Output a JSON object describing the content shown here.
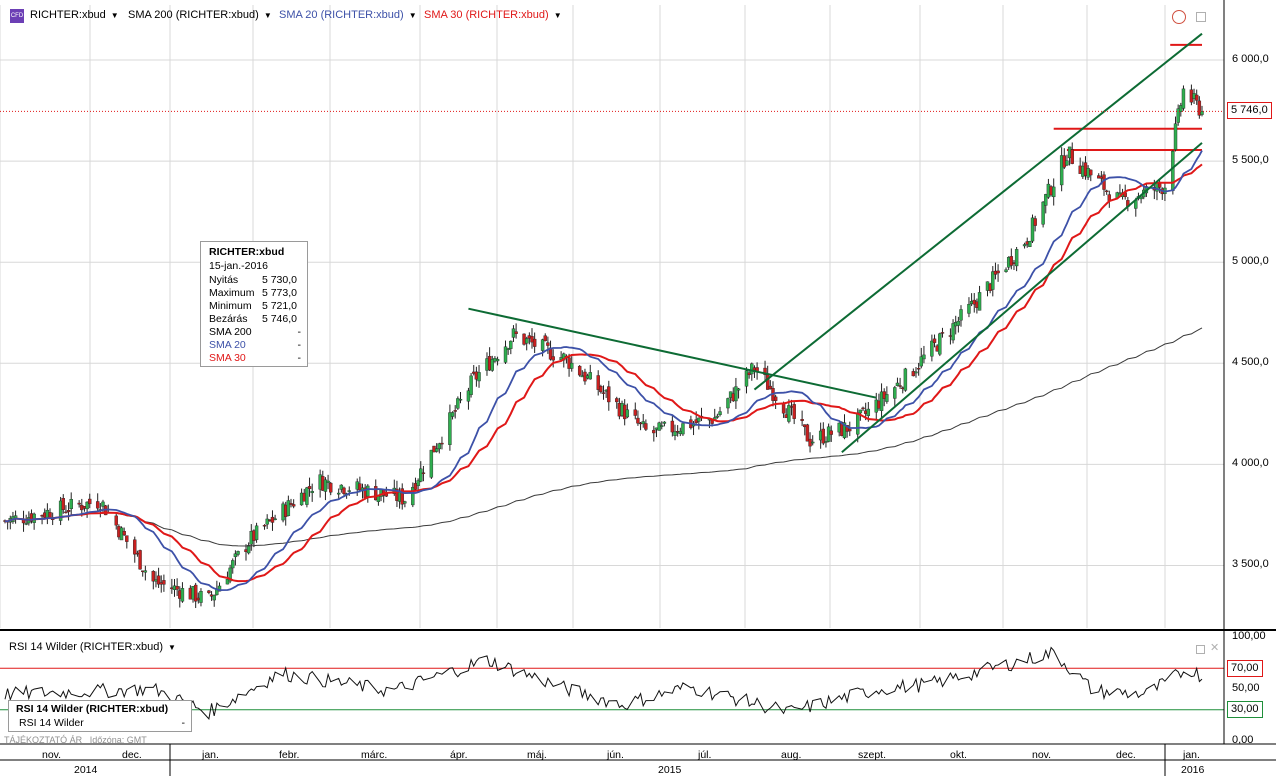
{
  "header": {
    "instrument": "RICHTER:xbud",
    "sma200_label": "SMA 200 (RICHTER:xbud)",
    "sma20_label": "SMA 20 (RICHTER:xbud)",
    "sma30_label": "SMA 30 (RICHTER:xbud)"
  },
  "colors": {
    "sma200": "#3a3a3a",
    "sma20": "#3d51a8",
    "sma30": "#e01818",
    "trend": "#0d6b34",
    "level": "#e01818",
    "rsi_upper": "#e01818",
    "rsi_lower": "#1f8f3a"
  },
  "info_box": {
    "title": "RICHTER:xbud",
    "date": "15-jan.-2016",
    "rows": [
      {
        "label": "Nyitás",
        "value": "5 730,0"
      },
      {
        "label": "Maximum",
        "value": "5 773,0"
      },
      {
        "label": "Minimum",
        "value": "5 721,0"
      },
      {
        "label": "Bezárás",
        "value": "5 746,0"
      },
      {
        "label": "SMA 200",
        "value": "-"
      },
      {
        "label": "SMA 20",
        "value": "-"
      },
      {
        "label": "SMA 30",
        "value": "-"
      }
    ]
  },
  "price_axis": {
    "labels": [
      "6 000,0",
      "5 500,0",
      "5 000,0",
      "4 500,0",
      "4 000,0",
      "3 500,0"
    ],
    "last_price": "5 746,0"
  },
  "rsi": {
    "title": "RSI 14 Wilder (RICHTER:xbud)",
    "box_title": "RSI 14 Wilder (RICHTER:xbud)",
    "box_row_label": "RSI 14 Wilder",
    "box_row_value": "-",
    "axis_labels": [
      "100,00",
      "50,00",
      "0,00"
    ],
    "upper_level": "70,00",
    "lower_level": "30,00"
  },
  "footer": {
    "disclaimer": "TÁJÉKOZTATÓ ÁR",
    "timezone": "Időzóna: GMT"
  },
  "time_axis": {
    "months": [
      "nov.",
      "dec.",
      "jan.",
      "febr.",
      "márc.",
      "ápr.",
      "máj.",
      "jún.",
      "júl.",
      "aug.",
      "szept.",
      "okt.",
      "nov.",
      "dec.",
      "jan."
    ],
    "years": [
      "2014",
      "2015",
      "2016"
    ]
  },
  "chart_data": [
    {
      "type": "candlestick",
      "title": "RICHTER:xbud",
      "ylim": [
        3200,
        6150
      ],
      "x_range": [
        "2014-10-20",
        "2016-01-15"
      ],
      "key_points": {
        "dates": [
          "2014-10-20",
          "2014-11-25",
          "2014-12-15",
          "2015-01-05",
          "2015-01-20",
          "2015-02-15",
          "2015-03-20",
          "2015-04-15",
          "2015-04-30",
          "2015-05-20",
          "2015-06-20",
          "2015-07-15",
          "2015-07-30",
          "2015-08-20",
          "2015-09-05",
          "2015-09-25",
          "2015-10-20",
          "2015-11-10",
          "2015-11-25",
          "2015-12-15",
          "2016-01-01",
          "2016-01-08",
          "2016-01-15"
        ],
        "close": [
          3720,
          3820,
          3420,
          3330,
          3620,
          3920,
          3830,
          4420,
          4640,
          4520,
          4150,
          4230,
          4480,
          4120,
          4190,
          4430,
          4780,
          5120,
          5540,
          5300,
          5380,
          5850,
          5746
        ]
      },
      "last_bar": {
        "date": "15-jan.-2016",
        "open": 5730,
        "high": 5773,
        "low": 5721,
        "close": 5746
      }
    },
    {
      "type": "line",
      "title": "RSI 14 Wilder (RICHTER:xbud)",
      "ylim": [
        0,
        100
      ],
      "reference_lines": [
        70,
        30
      ],
      "key_points": {
        "dates": [
          "2014-10-20",
          "2014-12-15",
          "2015-01-05",
          "2015-02-01",
          "2015-03-15",
          "2015-04-20",
          "2015-05-20",
          "2015-06-10",
          "2015-07-05",
          "2015-08-12",
          "2015-09-15",
          "2015-10-05",
          "2015-11-20",
          "2015-12-05",
          "2015-12-25",
          "2016-01-10",
          "2016-01-15"
        ],
        "values": [
          45,
          50,
          28,
          65,
          48,
          78,
          50,
          35,
          52,
          28,
          50,
          55,
          85,
          48,
          45,
          70,
          62
        ]
      }
    }
  ]
}
